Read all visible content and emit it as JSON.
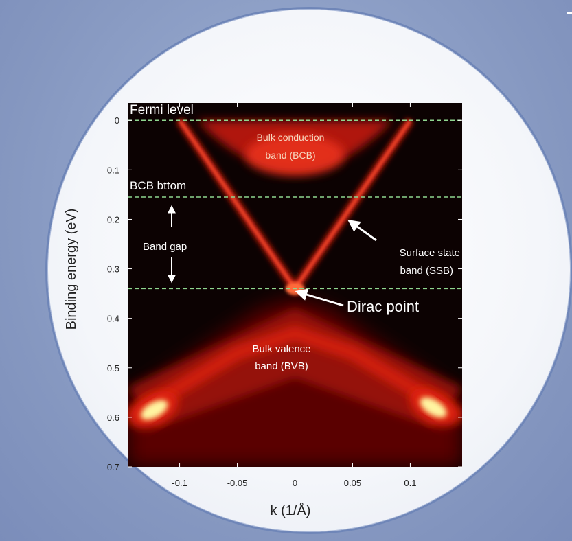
{
  "colors": {
    "background": "#8a9ec6",
    "plot_background": "#0c0202",
    "fermi_line": "#8fd68f",
    "annotation": "#ffffff",
    "intensity_high": "#fff4a0",
    "intensity_mid": "#e02010",
    "intensity_low": "#5a0000"
  },
  "chart_data": {
    "type": "heatmap",
    "title": "",
    "xlabel": "k (1/Å)",
    "ylabel": "Binding energy (eV)",
    "xlim": [
      -0.145,
      0.145
    ],
    "ylim": [
      0.7,
      -0.035
    ],
    "xticks": [
      {
        "value": -0.1,
        "label": "-0.1"
      },
      {
        "value": -0.05,
        "label": "-0.05"
      },
      {
        "value": 0,
        "label": "0"
      },
      {
        "value": 0.05,
        "label": "0.05"
      },
      {
        "value": 0.1,
        "label": "0.1"
      }
    ],
    "yticks": [
      {
        "value": 0,
        "label": "0"
      },
      {
        "value": 0.1,
        "label": "0.1"
      },
      {
        "value": 0.2,
        "label": "0.2"
      },
      {
        "value": 0.3,
        "label": "0.3"
      },
      {
        "value": 0.4,
        "label": "0.4"
      },
      {
        "value": 0.5,
        "label": "0.5"
      },
      {
        "value": 0.6,
        "label": "0.6"
      },
      {
        "value": 0.7,
        "label": "0.7"
      }
    ],
    "reference_lines": [
      {
        "energy": 0.0,
        "label": "Fermi level"
      },
      {
        "energy": 0.155,
        "label": "BCB bttom"
      },
      {
        "energy": 0.34,
        "label": ""
      }
    ],
    "bands": {
      "dirac_point": {
        "k": 0,
        "energy": 0.34
      },
      "surface_state_velocity": 3.4,
      "bcb_minimum": 0.155,
      "bvb_edge": 0.36
    },
    "annotations": {
      "bcb_line1": "Bulk conduction",
      "bcb_line2": "band (BCB)",
      "band_gap": "Band gap",
      "ssb_line1": "Surface state",
      "ssb_line2": "band (SSB)",
      "dirac": "Dirac point",
      "bvb_line1": "Bulk valence",
      "bvb_line2": "band (BVB)"
    },
    "grid": false,
    "legend": "none"
  }
}
